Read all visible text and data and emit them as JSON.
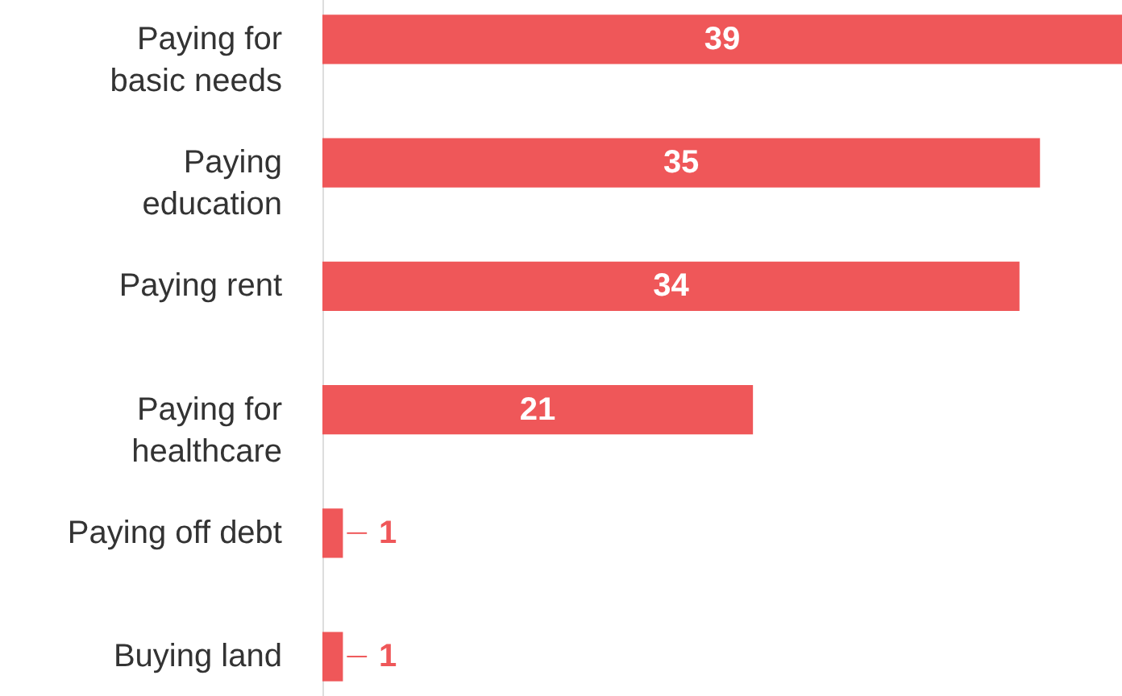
{
  "chart_data": {
    "type": "bar",
    "orientation": "horizontal",
    "categories": [
      "Paying for basic needs",
      "Paying education",
      "Paying rent",
      "Paying for healthcare",
      "Paying off debt",
      "Buying land"
    ],
    "values": [
      39,
      35,
      34,
      21,
      1,
      1
    ],
    "color": "#ef5759",
    "data_labels": true
  }
}
